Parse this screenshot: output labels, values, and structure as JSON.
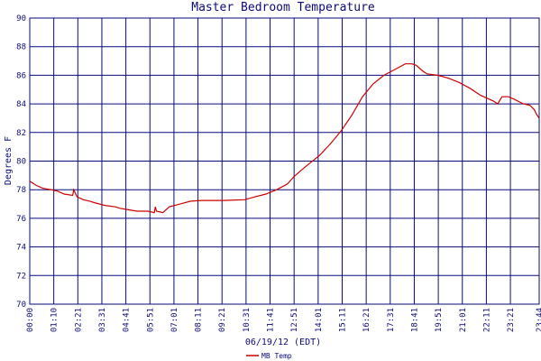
{
  "chart_data": {
    "type": "line",
    "title": "Master Bedroom Temperature",
    "xlabel": "06/19/12 (EDT)",
    "ylabel": "Degrees F",
    "ylim": [
      70,
      90
    ],
    "yticks": [
      70,
      72,
      74,
      76,
      78,
      80,
      82,
      84,
      86,
      88,
      90
    ],
    "grid": true,
    "legend_position": "bottom-left",
    "xticks": [
      "00:00",
      "01:10",
      "02:21",
      "03:31",
      "04:41",
      "05:51",
      "07:01",
      "08:11",
      "09:21",
      "10:31",
      "11:41",
      "12:51",
      "14:01",
      "15:11",
      "16:21",
      "17:31",
      "18:41",
      "19:51",
      "21:01",
      "22:11",
      "23:21",
      "23:44"
    ],
    "series": [
      {
        "name": "MB Temp",
        "color": "#cc0000",
        "x_hours": [
          0.0,
          0.3,
          0.6,
          1.0,
          1.3,
          1.6,
          2.0,
          2.05,
          2.2,
          2.5,
          2.8,
          3.0,
          3.5,
          4.0,
          4.2,
          4.6,
          5.0,
          5.5,
          5.8,
          5.85,
          5.9,
          6.2,
          6.5,
          7.0,
          7.5,
          8.0,
          9.0,
          10.0,
          10.5,
          11.0,
          11.5,
          12.0,
          12.3,
          12.6,
          13.0,
          13.5,
          14.0,
          14.5,
          15.0,
          15.5,
          16.0,
          16.5,
          17.0,
          17.5,
          17.8,
          18.0,
          18.3,
          18.5,
          19.0,
          19.5,
          20.0,
          20.5,
          21.0,
          21.3,
          21.6,
          21.8,
          22.0,
          22.3,
          22.6,
          23.0,
          23.3,
          23.5,
          23.6,
          23.73
        ],
        "values": [
          78.6,
          78.3,
          78.1,
          78.0,
          77.9,
          77.7,
          77.6,
          78.0,
          77.5,
          77.3,
          77.2,
          77.1,
          76.9,
          76.8,
          76.7,
          76.6,
          76.5,
          76.5,
          76.4,
          76.8,
          76.5,
          76.4,
          76.8,
          77.0,
          77.2,
          77.25,
          77.25,
          77.3,
          77.5,
          77.7,
          78.0,
          78.4,
          78.9,
          79.3,
          79.8,
          80.4,
          81.2,
          82.1,
          83.2,
          84.5,
          85.4,
          86.0,
          86.4,
          86.8,
          86.8,
          86.7,
          86.3,
          86.1,
          86.0,
          85.8,
          85.5,
          85.1,
          84.6,
          84.4,
          84.2,
          84.0,
          84.5,
          84.5,
          84.3,
          84.0,
          83.9,
          83.6,
          83.3,
          83.0
        ]
      }
    ]
  }
}
